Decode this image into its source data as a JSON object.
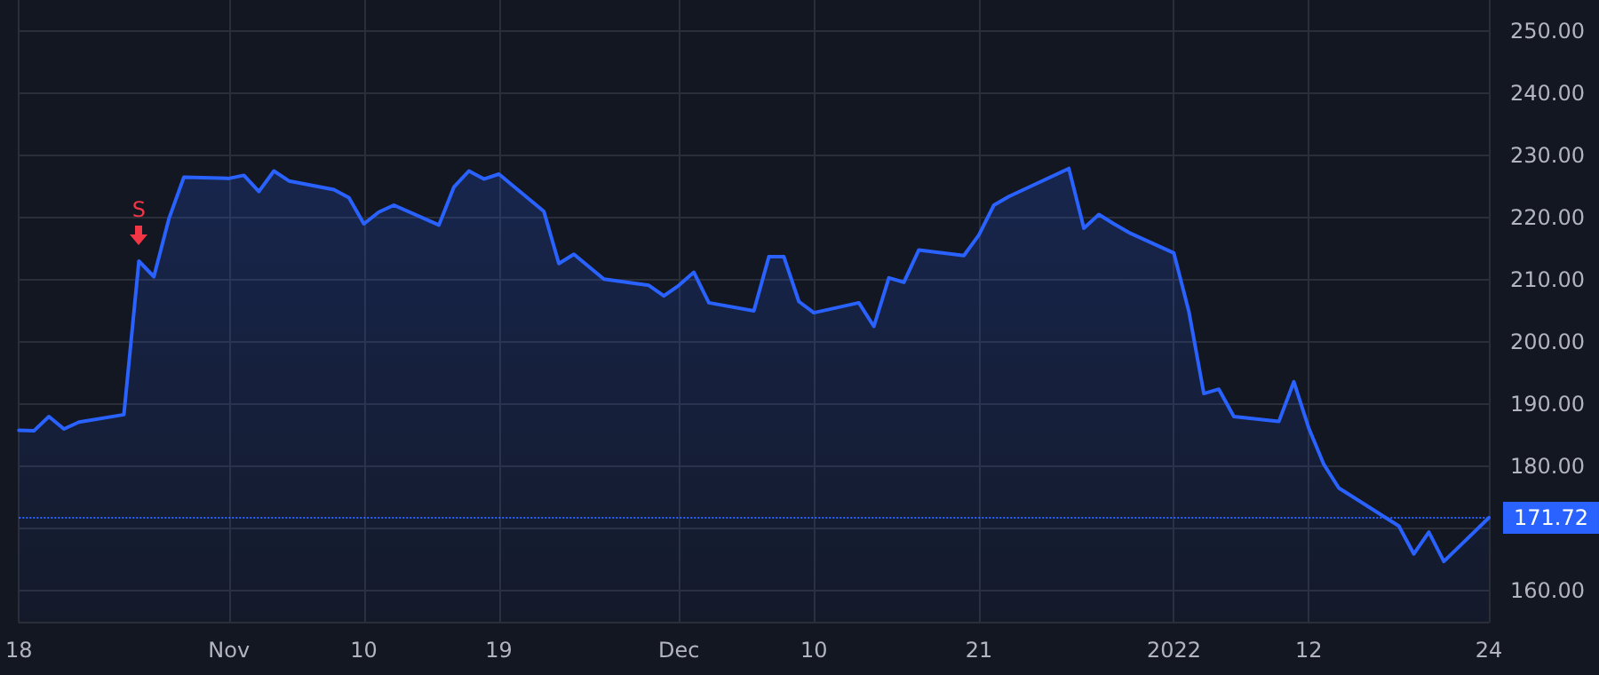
{
  "chart_data": {
    "type": "area",
    "grid": true,
    "marker": "none",
    "line_style": "solid",
    "x": [
      "2021-10-18",
      "2021-10-19",
      "2021-10-20",
      "2021-10-21",
      "2021-10-22",
      "2021-10-25",
      "2021-10-26",
      "2021-10-27",
      "2021-10-28",
      "2021-10-29",
      "2021-11-01",
      "2021-11-02",
      "2021-11-03",
      "2021-11-04",
      "2021-11-05",
      "2021-11-08",
      "2021-11-09",
      "2021-11-10",
      "2021-11-11",
      "2021-11-12",
      "2021-11-15",
      "2021-11-16",
      "2021-11-17",
      "2021-11-18",
      "2021-11-19",
      "2021-11-22",
      "2021-11-23",
      "2021-11-24",
      "2021-11-26",
      "2021-11-29",
      "2021-11-30",
      "2021-12-01",
      "2021-12-02",
      "2021-12-03",
      "2021-12-06",
      "2021-12-07",
      "2021-12-08",
      "2021-12-09",
      "2021-12-10",
      "2021-12-13",
      "2021-12-14",
      "2021-12-15",
      "2021-12-16",
      "2021-12-17",
      "2021-12-20",
      "2021-12-21",
      "2021-12-22",
      "2021-12-23",
      "2021-12-27",
      "2021-12-28",
      "2021-12-29",
      "2021-12-30",
      "2021-12-31",
      "2022-01-03",
      "2022-01-04",
      "2022-01-05",
      "2022-01-06",
      "2022-01-07",
      "2022-01-10",
      "2022-01-11",
      "2022-01-12",
      "2022-01-13",
      "2022-01-14",
      "2022-01-18",
      "2022-01-19",
      "2022-01-20",
      "2022-01-21",
      "2022-01-24"
    ],
    "series": [
      {
        "color": "#2962ff",
        "values": [
          185.8,
          185.7,
          188.0,
          186.0,
          187.1,
          188.3,
          213.0,
          210.5,
          219.8,
          226.5,
          226.3,
          226.8,
          224.2,
          227.5,
          225.9,
          224.5,
          223.2,
          219.0,
          220.9,
          222.0,
          218.8,
          224.9,
          227.5,
          226.2,
          227.0,
          221.0,
          212.6,
          214.1,
          210.1,
          209.1,
          207.4,
          209.1,
          211.2,
          206.3,
          205.0,
          213.7,
          213.7,
          206.5,
          204.7,
          206.3,
          202.5,
          210.3,
          209.6,
          214.8,
          213.9,
          217.2,
          222.0,
          223.4,
          227.9,
          218.3,
          220.5,
          219.0,
          217.6,
          214.3,
          204.9,
          191.7,
          192.4,
          188.0,
          187.2,
          193.6,
          186.1,
          180.3,
          176.5,
          170.4,
          165.9,
          169.4,
          164.7,
          171.72
        ]
      }
    ],
    "xlim": [
      "2021-10-18",
      "2022-01-24"
    ],
    "xticks": [
      {
        "value": "2021-10-18",
        "label": "18"
      },
      {
        "value": "2021-11-01",
        "label": "Nov"
      },
      {
        "value": "2021-11-10",
        "label": "10"
      },
      {
        "value": "2021-11-19",
        "label": "19"
      },
      {
        "value": "2021-12-01",
        "label": "Dec"
      },
      {
        "value": "2021-12-10",
        "label": "10"
      },
      {
        "value": "2021-12-21",
        "label": "21"
      },
      {
        "value": "2022-01-03",
        "label": "2022"
      },
      {
        "value": "2022-01-12",
        "label": "12"
      },
      {
        "value": "2022-01-24",
        "label": "24"
      }
    ],
    "ylim": [
      155,
      255
    ],
    "yticks": [
      {
        "value": 160,
        "label": "160.00"
      },
      {
        "value": 170,
        "label": null
      },
      {
        "value": 180,
        "label": "180.00"
      },
      {
        "value": 190,
        "label": "190.00"
      },
      {
        "value": 200,
        "label": "200.00"
      },
      {
        "value": 210,
        "label": "210.00"
      },
      {
        "value": 220,
        "label": "220.00"
      },
      {
        "value": 230,
        "label": "230.00"
      },
      {
        "value": 240,
        "label": "240.00"
      },
      {
        "value": 250,
        "label": "250.00"
      }
    ],
    "ref_lines": [
      {
        "axis": "y",
        "value": 171.72,
        "label": "171.72",
        "color": "#2962ff",
        "line_style": "dotted"
      }
    ],
    "annotations": [
      {
        "text": "S",
        "x": "2021-10-26",
        "y": 213.0
      }
    ]
  }
}
